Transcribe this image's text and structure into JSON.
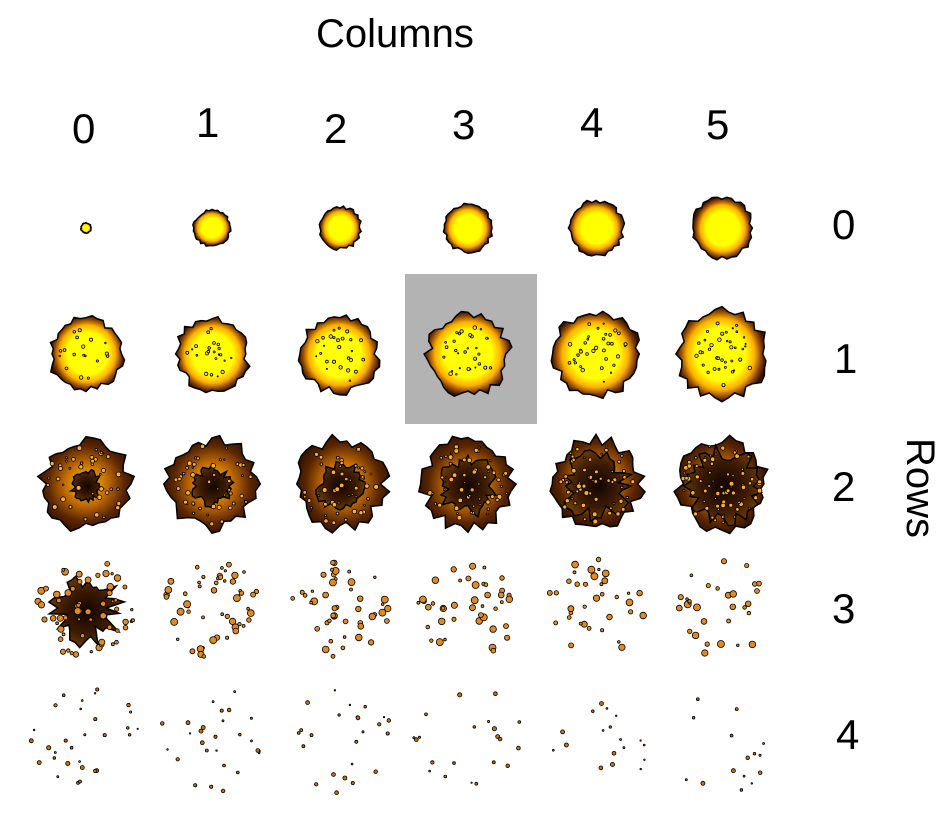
{
  "title": "Columns",
  "rows_title": "Rows",
  "column_labels": [
    "0",
    "1",
    "2",
    "3",
    "4",
    "5"
  ],
  "row_labels": [
    "0",
    "1",
    "2",
    "3",
    "4"
  ],
  "highlight": {
    "row": 1,
    "column": 3,
    "color": "#b3b3b3"
  },
  "palette": {
    "core": "#ffff00",
    "mid": "#ff9900",
    "edge": "#3a1600",
    "outline": "#000000"
  }
}
